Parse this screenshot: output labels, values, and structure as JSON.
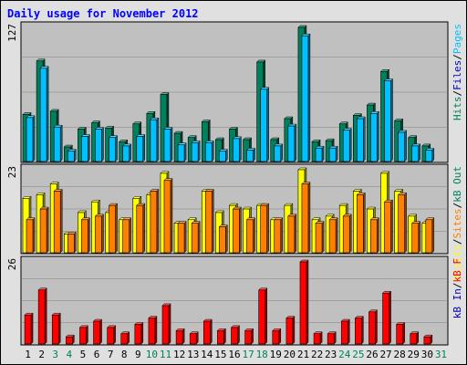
{
  "title": "Daily usage for November 2012",
  "colors": {
    "hits": "#00805c",
    "files": "#00c0ff",
    "pages": "#00c0ff",
    "visits": "#ffff00",
    "sites": "#ff8000",
    "kb_in": "#0000c0",
    "kb_out": "#00805c",
    "kbytes": "#ff0000",
    "plot_bg": "#c0c0c0",
    "frame_bg": "#e0e0e0",
    "weekend_label": "#00805c",
    "weekday_label": "#000000"
  },
  "panels": {
    "top": {
      "max_label": "127",
      "legend": [
        {
          "text": "Hits",
          "color": "#00805c"
        },
        {
          "text": "/",
          "color": "#000000"
        },
        {
          "text": "Files",
          "color": "#0000c0"
        },
        {
          "text": "/",
          "color": "#000000"
        },
        {
          "text": "Pages",
          "color": "#00c0ff"
        }
      ]
    },
    "middle": {
      "max_label": "23",
      "legend": [
        {
          "text": "Visits",
          "color": "#ffff00"
        },
        {
          "text": "/",
          "color": "#000000"
        },
        {
          "text": "Sites",
          "color": "#ff8000"
        },
        {
          "text": "/",
          "color": "#000000"
        },
        {
          "text": "kB Out",
          "color": "#00805c"
        }
      ]
    },
    "bottom": {
      "max_label": "26",
      "legend": [
        {
          "text": "kB In",
          "color": "#0000c0"
        },
        {
          "text": "/",
          "color": "#000000"
        },
        {
          "text": "kB F",
          "color": "#ff0000"
        }
      ]
    }
  },
  "chart_data": {
    "type": "bar",
    "title": "Daily usage for November 2012",
    "categories": [
      "1",
      "2",
      "3",
      "4",
      "5",
      "6",
      "7",
      "8",
      "9",
      "10",
      "11",
      "12",
      "13",
      "14",
      "15",
      "16",
      "17",
      "18",
      "19",
      "20",
      "21",
      "22",
      "23",
      "24",
      "25",
      "26",
      "27",
      "28",
      "29",
      "30",
      "31"
    ],
    "weekend_days": [
      "3",
      "4",
      "10",
      "11",
      "17",
      "18",
      "24",
      "25",
      "31"
    ],
    "panels": [
      {
        "name": "top",
        "ymax": 127,
        "series": [
          {
            "name": "Hits",
            "values": [
              44,
              95,
              47,
              13,
              30,
              36,
              31,
              18,
              35,
              45,
              63,
              26,
              22,
              37,
              20,
              30,
              20,
              94,
              20,
              40,
              127,
              18,
              19,
              35,
              43,
              53,
              85,
              38,
              22,
              14,
              0
            ]
          },
          {
            "name": "Pages",
            "values": [
              41,
              88,
              32,
              9,
              23,
              30,
              22,
              14,
              23,
              39,
              30,
              15,
              17,
              17,
              9,
              21,
              10,
              68,
              14,
              33,
              119,
              12,
              12,
              29,
              40,
              45,
              76,
              27,
              14,
              10,
              0
            ]
          }
        ]
      },
      {
        "name": "middle",
        "ymax": 23,
        "series": [
          {
            "name": "Visits",
            "values": [
              15,
              16,
              19,
              5,
              11,
              14,
              11,
              9,
              15,
              16,
              22,
              8,
              9,
              17,
              11,
              13,
              12,
              13,
              9,
              13,
              23,
              9,
              10,
              13,
              17,
              12,
              22,
              17,
              10,
              8,
              0
            ]
          },
          {
            "name": "Sites",
            "values": [
              9,
              12,
              17,
              5,
              9,
              10,
              13,
              9,
              13,
              17,
              20,
              8,
              8,
              17,
              7,
              12,
              9,
              13,
              9,
              10,
              19,
              8,
              9,
              10,
              16,
              9,
              14,
              16,
              8,
              9,
              0
            ]
          }
        ]
      },
      {
        "name": "bottom",
        "ymax": 26,
        "series": [
          {
            "name": "kB F",
            "values": [
              9,
              17,
              9,
              2,
              5,
              7,
              5,
              3,
              6,
              8,
              12,
              4,
              3,
              7,
              4,
              5,
              4,
              17,
              4,
              8,
              26,
              3,
              3,
              7,
              8,
              10,
              16,
              6,
              3,
              2,
              0
            ]
          }
        ]
      }
    ]
  }
}
